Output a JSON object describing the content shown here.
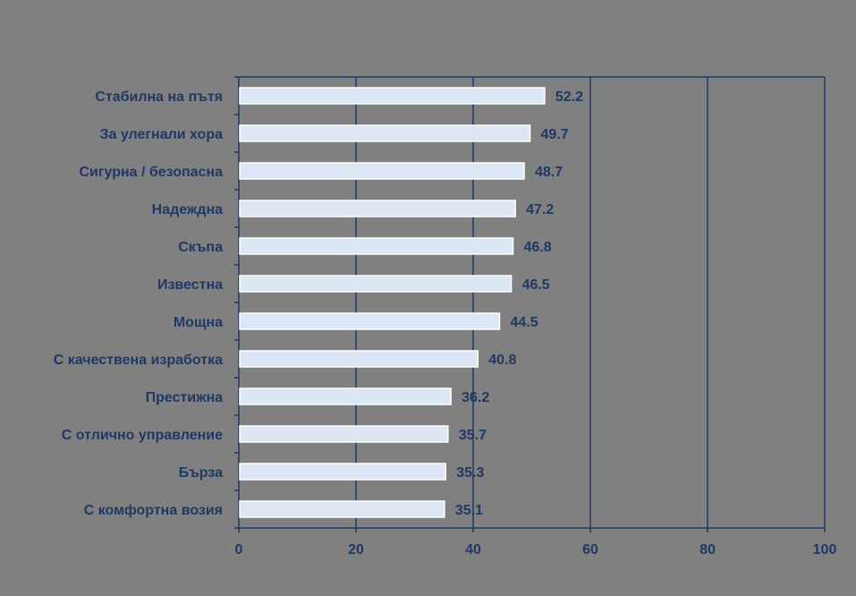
{
  "chart_data": {
    "type": "bar",
    "orientation": "horizontal",
    "title": "",
    "xlabel": "",
    "ylabel": "",
    "categories": [
      "Стабилна на пътя",
      "За улегнали хора",
      "Сигурна / безопасна",
      "Надеждна",
      "Скъпа",
      "Известна",
      "Мощна",
      "С качествена изработка",
      "Престижна",
      "С отлично управление",
      "Бърза",
      "С комфортна возия"
    ],
    "values": [
      52.2,
      49.7,
      48.7,
      47.2,
      46.8,
      46.5,
      44.5,
      40.8,
      36.2,
      35.7,
      35.3,
      35.1
    ],
    "value_labels": [
      "52.2",
      "49.7",
      "48.7",
      "47.2",
      "46.8",
      "46.5",
      "44.5",
      "40.8",
      "36.2",
      "35.7",
      "35.3",
      "35.1"
    ],
    "xlim": [
      0,
      100
    ],
    "xticks": [
      0,
      20,
      40,
      60,
      80,
      100
    ],
    "xtick_labels": [
      "0",
      "20",
      "40",
      "60",
      "80",
      "100"
    ],
    "grid": "vertical",
    "legend": "none",
    "colors": {
      "background": "#808080",
      "plot_area": "#808080",
      "bar_fill": "#dce6f4",
      "bar_stroke": "#ffffff",
      "text": "#1f3864",
      "gridline": "#1f3864",
      "axis": "#1f3864"
    }
  }
}
